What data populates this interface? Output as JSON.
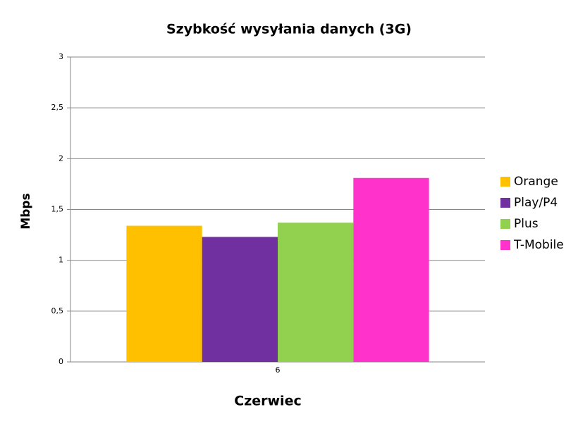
{
  "chart_data": {
    "type": "bar",
    "title": "Szybkość wysyłania danych (3G)",
    "x_label": "Czerwiec",
    "y_label": "Mbps",
    "categories": [
      "6"
    ],
    "series": [
      {
        "name": "Orange",
        "color": "#FFC000",
        "values": [
          1.34
        ]
      },
      {
        "name": "Play/P4",
        "color": "#7030A0",
        "values": [
          1.23
        ]
      },
      {
        "name": "Plus",
        "color": "#92D050",
        "values": [
          1.37
        ]
      },
      {
        "name": "T-Mobile",
        "color": "#FF33CC",
        "values": [
          1.81
        ]
      }
    ],
    "ylim": [
      0,
      3
    ],
    "yticks": [
      0,
      {
        "value": 0.5,
        "label": "0,5"
      },
      1,
      {
        "value": 1.5,
        "label": "1,5"
      },
      2,
      {
        "value": 2.5,
        "label": "2,5"
      },
      3
    ],
    "grid": true,
    "legend": "right"
  }
}
